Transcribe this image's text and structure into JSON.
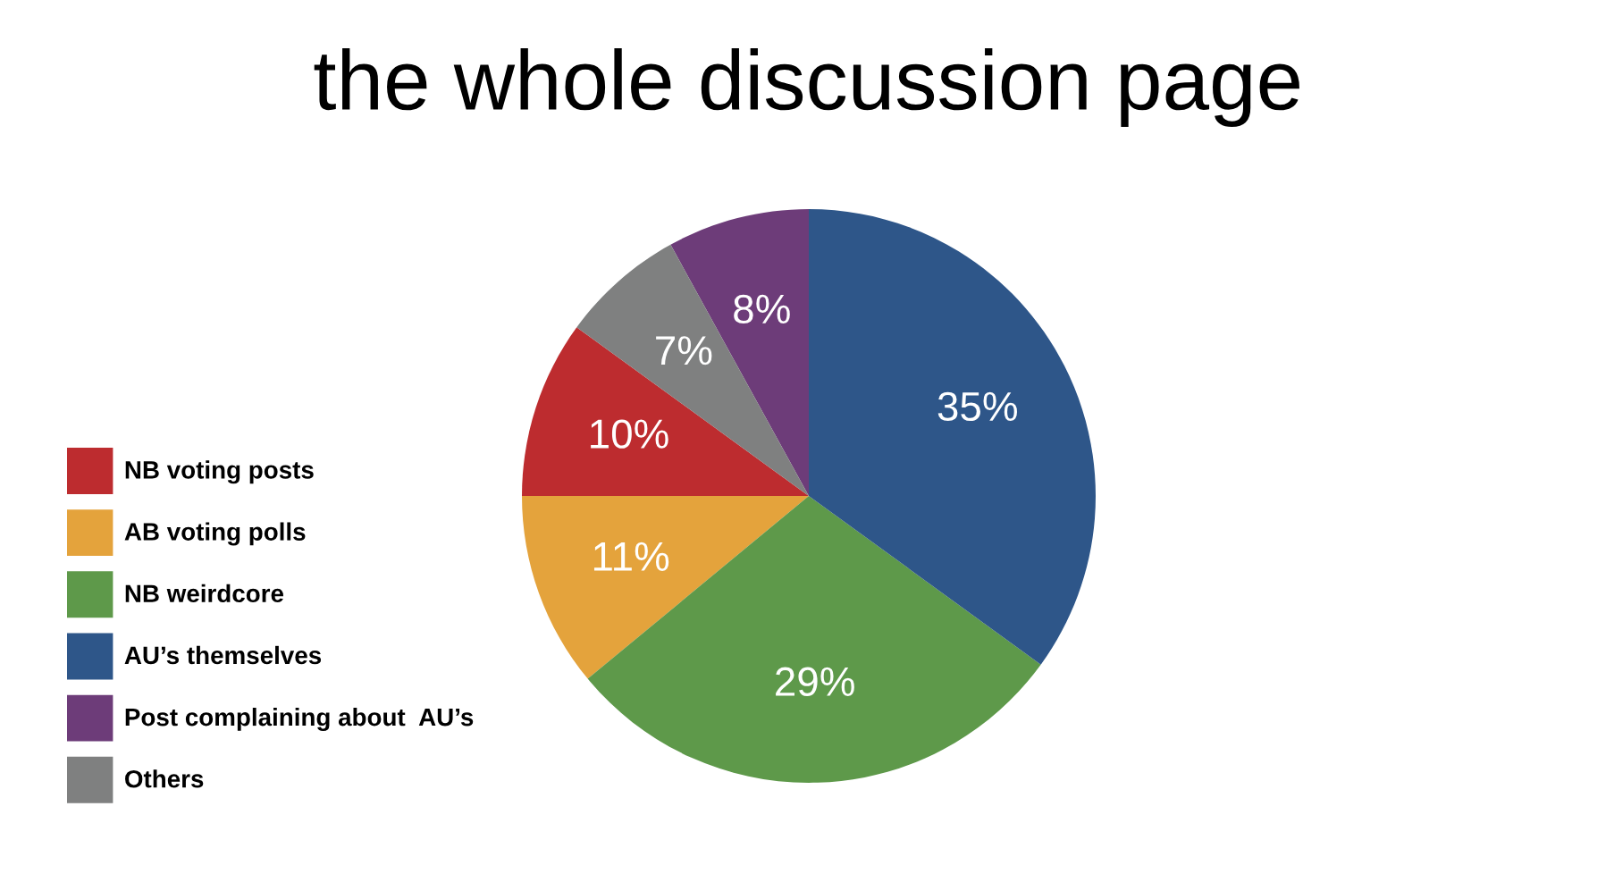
{
  "chart_data": {
    "type": "pie",
    "title": "the whole discussion page",
    "categories": [
      "NB voting posts",
      "AB voting polls",
      "NB weirdcore",
      "AU’s themselves",
      "Post complaining about  AU’s",
      "Others"
    ],
    "values": [
      10,
      11,
      29,
      35,
      8,
      7
    ],
    "colors": [
      "#bd2c2f",
      "#e4a33c",
      "#5e994a",
      "#2e5689",
      "#6d3c79",
      "#7f8080"
    ],
    "value_labels": [
      "10%",
      "11%",
      "29%",
      "35%",
      "8%",
      "7%"
    ],
    "legend": "left"
  }
}
